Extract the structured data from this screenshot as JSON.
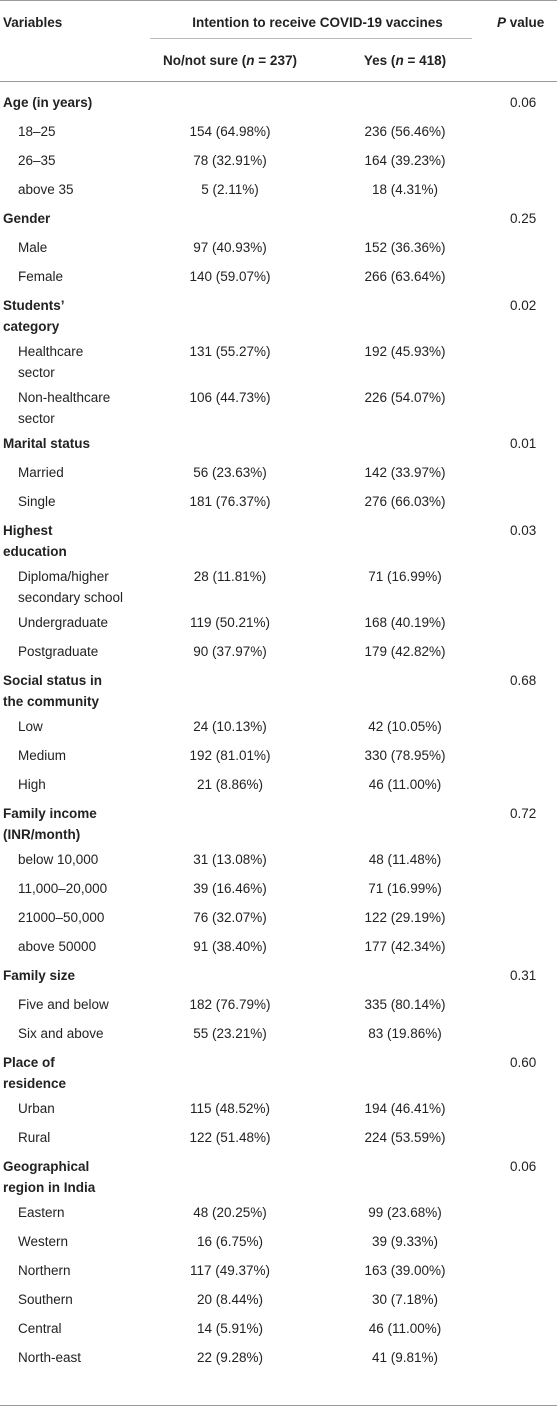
{
  "header": {
    "variables": "Variables",
    "intention": "Intention to receive COVID-19 vaccines",
    "pvalue_p": "P",
    "pvalue_rest": " value",
    "col_no_pre": "No/not sure (",
    "col_no_n": "n",
    "col_no_post": " = 237)",
    "col_yes_pre": "Yes (",
    "col_yes_n": "n",
    "col_yes_post": " = 418)"
  },
  "groups": [
    {
      "label": [
        "Age (in years)"
      ],
      "p": "0.06",
      "rows": [
        {
          "label": [
            "18–25"
          ],
          "no": "154 (64.98%)",
          "yes": "236 (56.46%)"
        },
        {
          "label": [
            "26–35"
          ],
          "no": "78 (32.91%)",
          "yes": "164 (39.23%)"
        },
        {
          "label": [
            "above 35"
          ],
          "no": "5 (2.11%)",
          "yes": "18 (4.31%)"
        }
      ]
    },
    {
      "label": [
        "Gender"
      ],
      "p": "0.25",
      "rows": [
        {
          "label": [
            "Male"
          ],
          "no": "97 (40.93%)",
          "yes": "152 (36.36%)"
        },
        {
          "label": [
            "Female"
          ],
          "no": "140 (59.07%)",
          "yes": "266 (63.64%)"
        }
      ]
    },
    {
      "label": [
        "Students’",
        "category"
      ],
      "p": "0.02",
      "rows": [
        {
          "label": [
            "Healthcare",
            "sector"
          ],
          "no": "131 (55.27%)",
          "yes": "192 (45.93%)"
        },
        {
          "label": [
            "Non-healthcare",
            "sector"
          ],
          "no": "106 (44.73%)",
          "yes": "226 (54.07%)"
        }
      ]
    },
    {
      "label": [
        "Marital status"
      ],
      "p": "0.01",
      "rows": [
        {
          "label": [
            "Married"
          ],
          "no": "56 (23.63%)",
          "yes": "142 (33.97%)"
        },
        {
          "label": [
            "Single"
          ],
          "no": "181 (76.37%)",
          "yes": "276 (66.03%)"
        }
      ]
    },
    {
      "label": [
        "Highest",
        "education"
      ],
      "p": "0.03",
      "rows": [
        {
          "label": [
            "Diploma/higher",
            "secondary school"
          ],
          "no": "28 (11.81%)",
          "yes": "71 (16.99%)"
        },
        {
          "label": [
            "Undergraduate"
          ],
          "no": "119 (50.21%)",
          "yes": "168 (40.19%)"
        },
        {
          "label": [
            "Postgraduate"
          ],
          "no": "90 (37.97%)",
          "yes": "179 (42.82%)"
        }
      ]
    },
    {
      "label": [
        "Social status in",
        "the community"
      ],
      "p": "0.68",
      "rows": [
        {
          "label": [
            "Low"
          ],
          "no": "24 (10.13%)",
          "yes": "42 (10.05%)"
        },
        {
          "label": [
            "Medium"
          ],
          "no": "192 (81.01%)",
          "yes": "330 (78.95%)"
        },
        {
          "label": [
            "High"
          ],
          "no": "21 (8.86%)",
          "yes": "46 (11.00%)"
        }
      ]
    },
    {
      "label": [
        "Family income",
        "(INR/month)"
      ],
      "p": "0.72",
      "rows": [
        {
          "label": [
            "below 10,000"
          ],
          "no": "31 (13.08%)",
          "yes": "48 (11.48%)"
        },
        {
          "label": [
            "11,000–20,000"
          ],
          "no": "39 (16.46%)",
          "yes": "71 (16.99%)"
        },
        {
          "label": [
            "21000–50,000"
          ],
          "no": "76 (32.07%)",
          "yes": "122 (29.19%)"
        },
        {
          "label": [
            "above 50000"
          ],
          "no": "91 (38.40%)",
          "yes": "177 (42.34%)"
        }
      ]
    },
    {
      "label": [
        "Family size"
      ],
      "p": "0.31",
      "rows": [
        {
          "label": [
            "Five and below"
          ],
          "no": "182 (76.79%)",
          "yes": "335 (80.14%)"
        },
        {
          "label": [
            "Six and above"
          ],
          "no": "55 (23.21%)",
          "yes": "83 (19.86%)"
        }
      ]
    },
    {
      "label": [
        "Place of",
        "residence"
      ],
      "p": "0.60",
      "rows": [
        {
          "label": [
            "Urban"
          ],
          "no": "115 (48.52%)",
          "yes": "194 (46.41%)"
        },
        {
          "label": [
            "Rural"
          ],
          "no": "122 (51.48%)",
          "yes": "224 (53.59%)"
        }
      ]
    },
    {
      "label": [
        "Geographical",
        "region in India"
      ],
      "p": "0.06",
      "rows": [
        {
          "label": [
            "Eastern"
          ],
          "no": "48 (20.25%)",
          "yes": "99 (23.68%)"
        },
        {
          "label": [
            "Western"
          ],
          "no": "16 (6.75%)",
          "yes": "39 (9.33%)"
        },
        {
          "label": [
            "Northern"
          ],
          "no": "117 (49.37%)",
          "yes": "163 (39.00%)"
        },
        {
          "label": [
            "Southern"
          ],
          "no": "20 (8.44%)",
          "yes": "30 (7.18%)"
        },
        {
          "label": [
            "Central"
          ],
          "no": "14 (5.91%)",
          "yes": "46 (11.00%)"
        },
        {
          "label": [
            "North-east"
          ],
          "no": "22 (9.28%)",
          "yes": "41 (9.81%)"
        }
      ]
    }
  ]
}
